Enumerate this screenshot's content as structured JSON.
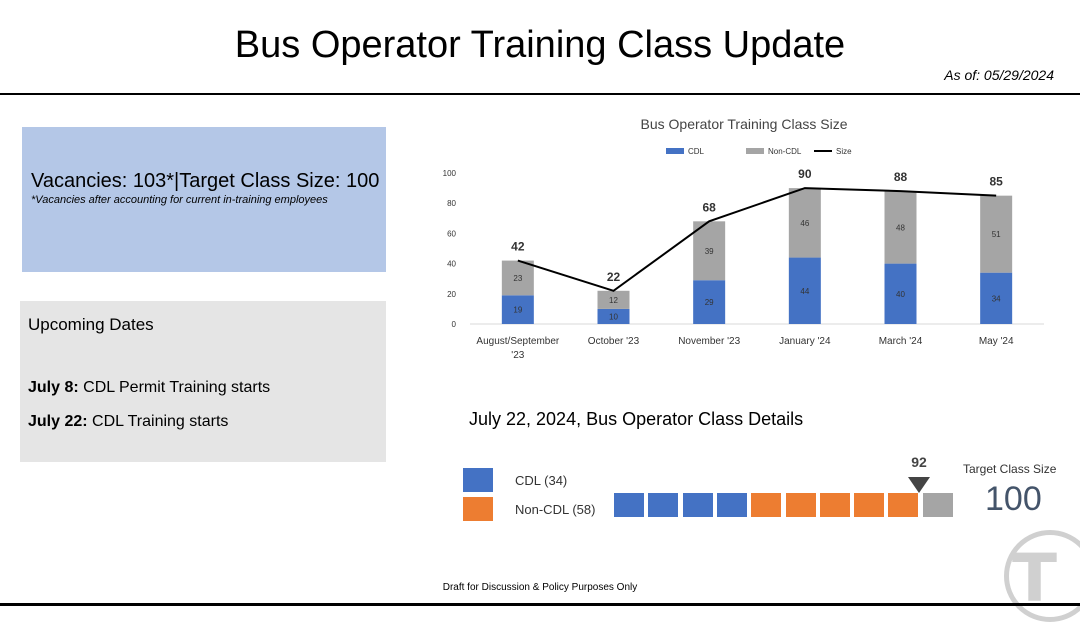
{
  "header": {
    "title": "Bus Operator Training Class Update",
    "as_of": "As of: 05/29/2024"
  },
  "vacancies": {
    "main": "Vacancies: 103*|Target Class Size: 100",
    "note": "*Vacancies after accounting for current in-training employees"
  },
  "upcoming": {
    "title": "Upcoming Dates",
    "items": [
      {
        "date": "July 8:",
        "text": " CDL Permit Training starts"
      },
      {
        "date": "July 22:",
        "text": " CDL Training starts"
      }
    ]
  },
  "chart_data": {
    "type": "bar",
    "title": "Bus Operator Training Class Size",
    "categories": [
      "August/September '23",
      "October '23",
      "November '23",
      "January '24",
      "March '24",
      "May '24"
    ],
    "series": [
      {
        "name": "CDL",
        "values": [
          19,
          10,
          29,
          44,
          40,
          34
        ],
        "color": "#4472c4"
      },
      {
        "name": "Non-CDL",
        "values": [
          23,
          12,
          39,
          46,
          48,
          51
        ],
        "color": "#a5a5a5"
      },
      {
        "name": "Size",
        "values": [
          42,
          22,
          68,
          90,
          88,
          85
        ],
        "color": "#000000",
        "type": "line"
      }
    ],
    "yticks": [
      0,
      20,
      40,
      60,
      80,
      100
    ],
    "ylim": [
      0,
      100
    ],
    "legend": "top-center",
    "grid": false
  },
  "details": {
    "title": "July 22, 2024, Bus Operator Class Details",
    "legend": [
      {
        "label": "CDL (34)",
        "color": "#4472c4"
      },
      {
        "label": "Non-CDL (58)",
        "color": "#ed7d31"
      }
    ],
    "blocks": [
      "#4472c4",
      "#4472c4",
      "#4472c4",
      "#4472c4",
      "#ed7d31",
      "#ed7d31",
      "#ed7d31",
      "#ed7d31",
      "#ed7d31",
      "#a5a5a5"
    ],
    "marker_value": "92",
    "target_label": "Target Class Size",
    "target_value": "100"
  },
  "footer": "Draft for Discussion & Policy Purposes Only"
}
